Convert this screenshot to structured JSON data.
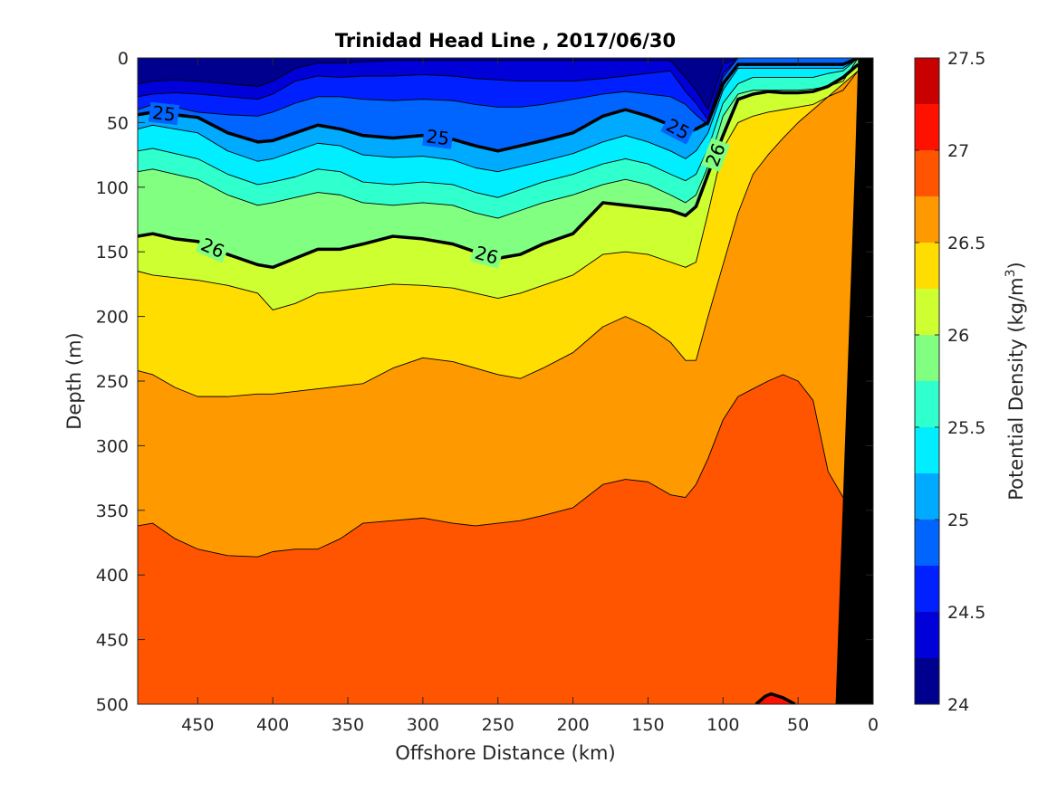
{
  "chart_data": {
    "type": "contour",
    "title": "Trinidad Head Line , 2017/06/30",
    "xlabel": "Offshore Distance (km)",
    "ylabel": "Depth (m)",
    "colorbar_label_prefix": "Potential Density (kg/m",
    "colorbar_label_sup": "3",
    "colorbar_label_suffix": ")",
    "xlim": [
      490,
      0
    ],
    "ylim": [
      0,
      500
    ],
    "x_reversed": true,
    "y_reversed": true,
    "xticks": [
      450,
      400,
      350,
      300,
      250,
      200,
      150,
      100,
      50,
      0
    ],
    "xtick_labels": [
      "450",
      "400",
      "350",
      "300",
      "250",
      "200",
      "150",
      "100",
      "50",
      "0"
    ],
    "yticks": [
      0,
      50,
      100,
      150,
      200,
      250,
      300,
      350,
      400,
      450,
      500
    ],
    "ytick_labels": [
      "0",
      "50",
      "100",
      "150",
      "200",
      "250",
      "300",
      "350",
      "400",
      "450",
      "500"
    ],
    "colorbar_range": [
      24,
      27.5
    ],
    "colorbar_ticks": [
      24,
      24.5,
      25,
      25.5,
      26,
      26.5,
      27,
      27.5
    ],
    "colorbar_tick_labels": [
      "24",
      "24.5",
      "25",
      "25.5",
      "26",
      "26.5",
      "27",
      "27.5"
    ],
    "levels": [
      24,
      24.25,
      24.5,
      24.75,
      25,
      25.25,
      25.5,
      25.75,
      26,
      26.25,
      26.5,
      26.75,
      27,
      27.25,
      27.5
    ],
    "level_colors": [
      "#00008f",
      "#0000d9",
      "#0020ff",
      "#0064ff",
      "#00aaff",
      "#00eeff",
      "#30ffce",
      "#80ff80",
      "#ceff30",
      "#ffdd00",
      "#ff9900",
      "#ff5500",
      "#ff1100",
      "#c80000"
    ],
    "bold_contours": [
      25,
      26
    ],
    "contour_labels": [
      "25",
      "25",
      "25",
      "26",
      "26",
      "26",
      "26"
    ],
    "x_stations": [
      490,
      480,
      465,
      450,
      430,
      410,
      400,
      385,
      370,
      355,
      340,
      320,
      300,
      280,
      265,
      250,
      235,
      220,
      200,
      180,
      165,
      150,
      135,
      125,
      118,
      110,
      100,
      90,
      80,
      70,
      60,
      50,
      40,
      30,
      20,
      10
    ],
    "isopycnals": [
      {
        "level": 24.25,
        "depths": [
          20,
          18,
          17,
          18,
          20,
          22,
          18,
          8,
          4,
          4,
          3,
          2,
          2,
          2,
          2,
          2,
          2,
          2,
          2,
          2,
          2,
          2,
          2,
          15,
          25,
          40,
          5,
          0,
          0,
          0,
          0,
          0,
          0,
          0,
          0,
          0
        ]
      },
      {
        "level": 24.5,
        "depths": [
          30,
          28,
          27,
          28,
          30,
          32,
          28,
          18,
          14,
          15,
          14,
          14,
          13,
          14,
          16,
          17,
          18,
          18,
          18,
          16,
          14,
          12,
          10,
          26,
          35,
          48,
          12,
          0,
          0,
          0,
          0,
          0,
          0,
          0,
          0,
          0
        ]
      },
      {
        "level": 24.75,
        "depths": [
          40,
          36,
          38,
          42,
          44,
          45,
          42,
          35,
          30,
          30,
          32,
          33,
          32,
          33,
          36,
          38,
          38,
          36,
          32,
          28,
          26,
          28,
          30,
          36,
          44,
          52,
          15,
          0,
          0,
          0,
          0,
          0,
          0,
          0,
          0,
          0
        ]
      },
      {
        "level": 25,
        "depths": [
          44,
          42,
          44,
          46,
          58,
          65,
          64,
          58,
          52,
          55,
          60,
          62,
          60,
          63,
          68,
          72,
          68,
          64,
          58,
          45,
          40,
          45,
          52,
          58,
          55,
          50,
          20,
          5,
          5,
          5,
          5,
          5,
          5,
          5,
          5,
          0
        ]
      },
      {
        "level": 25.25,
        "depths": [
          55,
          52,
          55,
          58,
          72,
          80,
          78,
          72,
          66,
          68,
          75,
          77,
          76,
          79,
          85,
          88,
          84,
          80,
          74,
          65,
          60,
          65,
          72,
          78,
          72,
          58,
          25,
          8,
          8,
          8,
          8,
          8,
          8,
          8,
          8,
          0
        ]
      },
      {
        "level": 25.5,
        "depths": [
          72,
          70,
          74,
          78,
          90,
          98,
          96,
          92,
          86,
          88,
          96,
          98,
          96,
          98,
          104,
          108,
          102,
          96,
          90,
          82,
          78,
          82,
          90,
          95,
          90,
          70,
          35,
          20,
          15,
          15,
          15,
          15,
          15,
          12,
          10,
          0
        ]
      },
      {
        "level": 25.75,
        "depths": [
          88,
          86,
          90,
          94,
          106,
          114,
          112,
          108,
          104,
          106,
          112,
          114,
          112,
          114,
          120,
          124,
          118,
          112,
          106,
          98,
          94,
          98,
          106,
          112,
          106,
          84,
          45,
          28,
          25,
          25,
          25,
          25,
          24,
          22,
          18,
          0
        ]
      },
      {
        "level": 26,
        "depths": [
          138,
          136,
          140,
          142,
          152,
          160,
          162,
          155,
          148,
          148,
          144,
          138,
          140,
          144,
          150,
          155,
          152,
          144,
          136,
          112,
          114,
          116,
          118,
          122,
          115,
          90,
          60,
          32,
          28,
          26,
          27,
          27,
          26,
          22,
          15,
          5
        ]
      },
      {
        "level": 26.25,
        "depths": [
          165,
          168,
          170,
          172,
          176,
          182,
          195,
          190,
          182,
          180,
          178,
          175,
          176,
          178,
          182,
          186,
          182,
          176,
          168,
          152,
          150,
          152,
          158,
          162,
          158,
          120,
          70,
          50,
          45,
          42,
          40,
          38,
          36,
          30,
          25,
          10
        ]
      },
      {
        "level": 26.5,
        "depths": [
          242,
          245,
          255,
          262,
          262,
          260,
          260,
          258,
          256,
          254,
          252,
          240,
          232,
          235,
          240,
          245,
          248,
          240,
          228,
          208,
          200,
          208,
          220,
          234,
          234,
          200,
          160,
          120,
          90,
          75,
          62,
          50,
          40,
          30,
          20,
          10
        ]
      },
      {
        "level": 26.75,
        "depths": [
          362,
          360,
          372,
          380,
          385,
          386,
          382,
          380,
          380,
          372,
          360,
          358,
          356,
          360,
          362,
          360,
          358,
          354,
          348,
          330,
          326,
          328,
          338,
          340,
          330,
          310,
          280,
          262,
          256,
          250,
          245,
          250,
          265,
          320,
          340,
          350
        ]
      }
    ],
    "high_patch": {
      "level": 27,
      "x": [
        78,
        72,
        68,
        60,
        52
      ],
      "depth": [
        500,
        494,
        492,
        495,
        500
      ]
    },
    "bathymetry": {
      "x": [
        10,
        0,
        0,
        25,
        12
      ],
      "depth": [
        0,
        0,
        500,
        500,
        80
      ]
    }
  }
}
